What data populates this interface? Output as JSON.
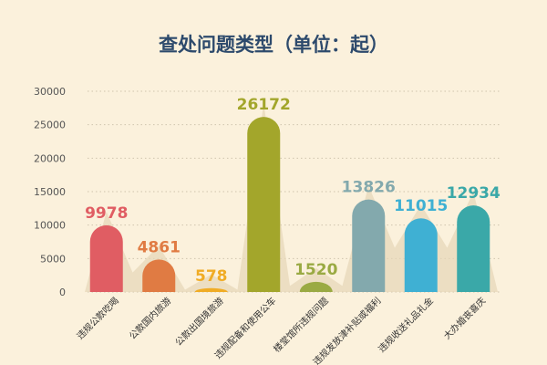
{
  "chart_data": {
    "type": "bar",
    "title": "查处问题类型（单位：起）",
    "categories": [
      "违规公款吃喝",
      "公款国内旅游",
      "公款出国境旅游",
      "违规配备和使用公车",
      "楼堂馆所违规问题",
      "违规发放津补贴或福利",
      "违规收送礼品礼金",
      "大办婚丧喜庆"
    ],
    "values": [
      9978,
      4861,
      578,
      26172,
      1520,
      13826,
      11015,
      12934
    ],
    "value_labels": [
      "9978",
      "4861",
      "578",
      "26172",
      "1520",
      "13826",
      "11015",
      "12934"
    ],
    "colors": [
      "#e05d63",
      "#e07b43",
      "#f0ac25",
      "#a3a62b",
      "#9aaa43",
      "#83a9ad",
      "#3fb0d3",
      "#3aa8a8"
    ],
    "yticks": [
      "30000",
      "25000",
      "20000",
      "15000",
      "10000",
      "5000",
      "0"
    ],
    "ylim": [
      0,
      30000
    ],
    "grid": true,
    "legend": "none",
    "background_color": "#fbf1dc",
    "title_color": "#2d4a6c"
  }
}
